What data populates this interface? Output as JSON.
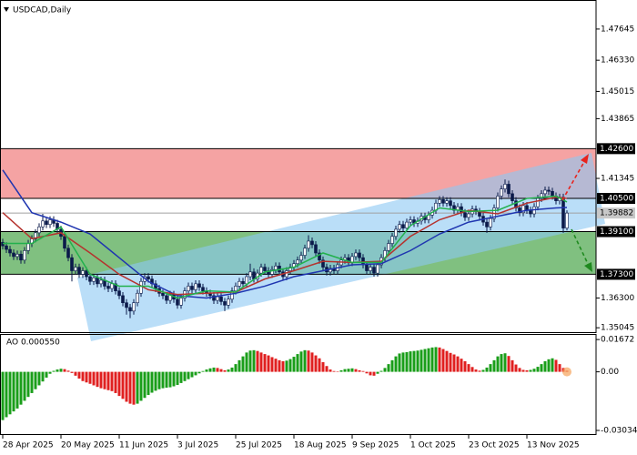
{
  "chart_data": [
    {
      "type": "candlestick",
      "title": "USDCAD,Daily",
      "categories": [
        "28 Apr 2025",
        null,
        null,
        null,
        null,
        null,
        null,
        null,
        null,
        null,
        null,
        null,
        null,
        null,
        null,
        null,
        "20 May 2025",
        null,
        null,
        null,
        null,
        null,
        null,
        null,
        null,
        null,
        null,
        null,
        null,
        null,
        null,
        null,
        "11 Jun 2025",
        null,
        null,
        null,
        null,
        null,
        null,
        null,
        null,
        null,
        null,
        null,
        null,
        null,
        null,
        null,
        "3 Jul 2025",
        null,
        null,
        null,
        null,
        null,
        null,
        null,
        null,
        null,
        null,
        null,
        null,
        null,
        null,
        null,
        "25 Jul 2025",
        null,
        null,
        null,
        null,
        null,
        null,
        null,
        null,
        null,
        null,
        null,
        null,
        null,
        null,
        null,
        "18 Aug 2025",
        null,
        null,
        null,
        null,
        null,
        null,
        null,
        null,
        null,
        null,
        null,
        null,
        null,
        null,
        null,
        "9 Sep 2025",
        null,
        null,
        null,
        null,
        null,
        null,
        null,
        null,
        null,
        null,
        null,
        null,
        null,
        null,
        null,
        "1 Oct 2025",
        null,
        null,
        null,
        null,
        null,
        null,
        null,
        null,
        null,
        null,
        null,
        null,
        null,
        null,
        null,
        "23 Oct 2025",
        null,
        null,
        null,
        null,
        null,
        null,
        null,
        null,
        null,
        null,
        null,
        null,
        null,
        null,
        null,
        "13 Nov 2025",
        null,
        null,
        null,
        null,
        null,
        null,
        null,
        null,
        null,
        null,
        null
      ],
      "open": [
        1.3865,
        1.385,
        1.3835,
        1.382,
        1.3805,
        1.3815,
        1.379,
        1.383,
        1.386,
        1.388,
        1.3905,
        1.393,
        1.3955,
        1.394,
        1.396,
        1.3945,
        1.392,
        1.389,
        1.384,
        1.38,
        1.3745,
        1.376,
        1.373,
        1.3745,
        1.372,
        1.37,
        1.3715,
        1.369,
        1.3705,
        1.368,
        1.367,
        1.369,
        1.366,
        1.364,
        1.361,
        1.359,
        1.3575,
        1.361,
        1.365,
        1.37,
        1.372,
        1.371,
        1.369,
        1.367,
        1.365,
        1.364,
        1.362,
        1.3645,
        1.3625,
        1.36,
        1.363,
        1.366,
        1.368,
        1.3665,
        1.369,
        1.3675,
        1.366,
        1.365,
        1.364,
        1.362,
        1.3635,
        1.3615,
        1.36,
        1.3625,
        1.366,
        1.368,
        1.37,
        1.369,
        1.372,
        1.374,
        1.371,
        1.3735,
        1.376,
        1.3745,
        1.373,
        1.375,
        1.3765,
        1.374,
        1.372,
        1.3745,
        1.376,
        1.3775,
        1.379,
        1.381,
        1.384,
        1.387,
        1.3855,
        1.382,
        1.379,
        1.376,
        1.374,
        1.3755,
        1.3745,
        1.377,
        1.379,
        1.38,
        1.378,
        1.3805,
        1.382,
        1.38,
        1.377,
        1.3745,
        1.376,
        1.3735,
        1.377,
        1.38,
        1.383,
        1.386,
        1.389,
        1.392,
        1.394,
        1.3925,
        1.395,
        1.396,
        1.3945,
        1.3955,
        1.3975,
        1.396,
        1.398,
        1.4,
        1.403,
        1.4045,
        1.403,
        1.404,
        1.402,
        1.4,
        1.4015,
        1.399,
        1.397,
        1.3985,
        1.4005,
        1.3995,
        1.3975,
        1.395,
        1.393,
        1.3965,
        1.401,
        1.406,
        1.409,
        1.411,
        1.407,
        1.404,
        1.401,
        1.399,
        1.402,
        1.4,
        1.3985,
        1.4015,
        1.405,
        1.407,
        1.4085,
        1.408,
        1.406,
        1.404,
        1.4055,
        1.3925
      ],
      "high": [
        1.388,
        1.3865,
        1.385,
        1.3835,
        1.383,
        1.383,
        1.3845,
        1.3875,
        1.3895,
        1.392,
        1.3945,
        1.3985,
        1.397,
        1.3975,
        1.3975,
        1.396,
        1.3935,
        1.3905,
        1.3855,
        1.3815,
        1.3775,
        1.3775,
        1.376,
        1.376,
        1.3735,
        1.373,
        1.373,
        1.372,
        1.372,
        1.3695,
        1.3705,
        1.3705,
        1.3675,
        1.3655,
        1.3625,
        1.3605,
        1.3625,
        1.3665,
        1.3715,
        1.3735,
        1.3735,
        1.3725,
        1.3705,
        1.3685,
        1.3665,
        1.3655,
        1.366,
        1.366,
        1.364,
        1.3645,
        1.3675,
        1.3695,
        1.3695,
        1.3705,
        1.3705,
        1.369,
        1.3675,
        1.3665,
        1.3655,
        1.365,
        1.365,
        1.363,
        1.364,
        1.3675,
        1.3695,
        1.3715,
        1.3715,
        1.3735,
        1.3775,
        1.3755,
        1.375,
        1.3775,
        1.3775,
        1.376,
        1.3765,
        1.378,
        1.378,
        1.3755,
        1.376,
        1.3775,
        1.379,
        1.3805,
        1.3825,
        1.3855,
        1.3895,
        1.3885,
        1.387,
        1.3835,
        1.3805,
        1.3775,
        1.377,
        1.377,
        1.3785,
        1.3805,
        1.3815,
        1.3815,
        1.382,
        1.3835,
        1.3835,
        1.3815,
        1.3785,
        1.3775,
        1.3775,
        1.3785,
        1.3815,
        1.3845,
        1.3875,
        1.3905,
        1.3935,
        1.3955,
        1.3955,
        1.3965,
        1.3975,
        1.3975,
        1.397,
        1.399,
        1.399,
        1.3995,
        1.4015,
        1.4045,
        1.406,
        1.406,
        1.4055,
        1.4055,
        1.4035,
        1.403,
        1.403,
        1.4005,
        1.4,
        1.402,
        1.402,
        1.401,
        1.399,
        1.3965,
        1.398,
        1.4025,
        1.4075,
        1.4105,
        1.413,
        1.4125,
        1.4085,
        1.4055,
        1.4025,
        1.4035,
        1.4035,
        1.4015,
        1.403,
        1.4065,
        1.4085,
        1.41,
        1.41,
        1.4095,
        1.4075,
        1.407,
        1.407,
        1.4
      ],
      "low": [
        1.3835,
        1.382,
        1.3805,
        1.379,
        1.379,
        1.3775,
        1.3775,
        1.3815,
        1.3845,
        1.3865,
        1.389,
        1.3915,
        1.3925,
        1.3925,
        1.393,
        1.3905,
        1.3875,
        1.3825,
        1.3785,
        1.37,
        1.373,
        1.3715,
        1.3715,
        1.3705,
        1.3685,
        1.3685,
        1.3675,
        1.3675,
        1.3665,
        1.3655,
        1.3655,
        1.3645,
        1.3625,
        1.3595,
        1.356,
        1.3545,
        1.356,
        1.3595,
        1.3635,
        1.3685,
        1.3695,
        1.3675,
        1.3655,
        1.3635,
        1.3625,
        1.3605,
        1.3605,
        1.361,
        1.3585,
        1.3585,
        1.3615,
        1.3645,
        1.365,
        1.365,
        1.366,
        1.3645,
        1.3635,
        1.3625,
        1.3605,
        1.3605,
        1.36,
        1.3575,
        1.3585,
        1.361,
        1.3645,
        1.3665,
        1.3675,
        1.3675,
        1.3705,
        1.3695,
        1.3695,
        1.372,
        1.373,
        1.3715,
        1.3715,
        1.3735,
        1.3725,
        1.3705,
        1.3705,
        1.373,
        1.3745,
        1.376,
        1.3775,
        1.3795,
        1.3825,
        1.384,
        1.3805,
        1.3775,
        1.3745,
        1.3725,
        1.3725,
        1.373,
        1.373,
        1.3755,
        1.3775,
        1.3765,
        1.3765,
        1.379,
        1.3785,
        1.3755,
        1.373,
        1.373,
        1.372,
        1.372,
        1.3755,
        1.3785,
        1.3815,
        1.3845,
        1.3875,
        1.3905,
        1.391,
        1.391,
        1.3935,
        1.393,
        1.393,
        1.394,
        1.3945,
        1.3945,
        1.3965,
        1.3985,
        1.4015,
        1.4015,
        1.4015,
        1.4005,
        1.3985,
        1.3985,
        1.3975,
        1.3955,
        1.3955,
        1.397,
        1.398,
        1.396,
        1.3935,
        1.3905,
        1.3915,
        1.395,
        1.3995,
        1.4045,
        1.4075,
        1.4055,
        1.4025,
        1.3995,
        1.3975,
        1.3975,
        1.3985,
        1.397,
        1.397,
        1.4,
        1.4035,
        1.4055,
        1.4065,
        1.4045,
        1.4025,
        1.4025,
        1.3905,
        1.3915
      ],
      "close": [
        1.385,
        1.3835,
        1.382,
        1.3805,
        1.3815,
        1.379,
        1.383,
        1.386,
        1.388,
        1.3905,
        1.393,
        1.3955,
        1.394,
        1.396,
        1.3945,
        1.392,
        1.389,
        1.384,
        1.38,
        1.3745,
        1.376,
        1.373,
        1.3745,
        1.372,
        1.37,
        1.3715,
        1.369,
        1.3705,
        1.368,
        1.367,
        1.369,
        1.366,
        1.364,
        1.361,
        1.359,
        1.3575,
        1.361,
        1.365,
        1.37,
        1.372,
        1.371,
        1.369,
        1.367,
        1.365,
        1.364,
        1.362,
        1.3645,
        1.3625,
        1.36,
        1.363,
        1.366,
        1.368,
        1.3665,
        1.369,
        1.3675,
        1.366,
        1.365,
        1.364,
        1.362,
        1.3635,
        1.3615,
        1.36,
        1.3625,
        1.366,
        1.368,
        1.37,
        1.369,
        1.372,
        1.374,
        1.371,
        1.3735,
        1.376,
        1.3745,
        1.373,
        1.375,
        1.3765,
        1.374,
        1.372,
        1.3745,
        1.376,
        1.3775,
        1.379,
        1.381,
        1.384,
        1.387,
        1.3855,
        1.382,
        1.379,
        1.376,
        1.374,
        1.3755,
        1.3745,
        1.377,
        1.379,
        1.38,
        1.378,
        1.3805,
        1.382,
        1.38,
        1.377,
        1.3745,
        1.376,
        1.3735,
        1.377,
        1.38,
        1.383,
        1.386,
        1.389,
        1.392,
        1.394,
        1.3925,
        1.395,
        1.396,
        1.3945,
        1.3955,
        1.3975,
        1.396,
        1.398,
        1.4,
        1.403,
        1.4045,
        1.403,
        1.404,
        1.402,
        1.4,
        1.4015,
        1.399,
        1.397,
        1.3985,
        1.4005,
        1.3995,
        1.3975,
        1.395,
        1.393,
        1.3965,
        1.401,
        1.406,
        1.409,
        1.411,
        1.407,
        1.404,
        1.401,
        1.399,
        1.402,
        1.4,
        1.3985,
        1.4015,
        1.405,
        1.407,
        1.4085,
        1.408,
        1.406,
        1.404,
        1.4055,
        1.3925,
        1.39882
      ],
      "color_up": "#ffffff",
      "color_down": "#0b1a4a",
      "outline": "#0b1a4a",
      "series": [
        {
          "color": "#1f35b0",
          "x": [
            0,
            8,
            16,
            24,
            32,
            40,
            48,
            56,
            64,
            72,
            80,
            88,
            96,
            104,
            112,
            120,
            128,
            136,
            144,
            152,
            155
          ],
          "values": [
            1.417,
            1.399,
            1.395,
            1.39,
            1.38,
            1.37,
            1.364,
            1.363,
            1.365,
            1.368,
            1.372,
            1.3745,
            1.377,
            1.3775,
            1.383,
            1.39,
            1.395,
            1.3975,
            1.4,
            1.401,
            1.4012
          ]
        },
        {
          "color": "#b5332e",
          "x": [
            0,
            8,
            16,
            24,
            32,
            40,
            48,
            56,
            64,
            72,
            80,
            88,
            96,
            104,
            112,
            120,
            128,
            136,
            144,
            152,
            155
          ],
          "values": [
            1.399,
            1.388,
            1.3905,
            1.382,
            1.373,
            1.3665,
            1.3645,
            1.365,
            1.3655,
            1.371,
            1.3745,
            1.3785,
            1.378,
            1.3785,
            1.389,
            1.396,
            1.4,
            1.3985,
            1.403,
            1.4055,
            1.405
          ]
        },
        {
          "color": "#22b14c",
          "x": [
            0,
            8,
            16,
            24,
            32,
            40,
            48,
            56,
            64,
            72,
            80,
            88,
            96,
            104,
            112,
            120,
            128,
            136,
            144,
            152,
            155
          ],
          "values": [
            1.386,
            1.386,
            1.393,
            1.373,
            1.368,
            1.368,
            1.363,
            1.366,
            1.3655,
            1.374,
            1.376,
            1.382,
            1.378,
            1.378,
            1.3935,
            1.401,
            1.3995,
            1.4,
            1.405,
            1.406,
            1.4035
          ]
        }
      ],
      "ylim": [
        1.3486,
        1.4887
      ],
      "yticks": [
        1.47645,
        {
          "value": 1.4633,
          "label": "1.46330"
        },
        1.45015,
        1.43865,
        1.41345,
        {
          "value": 1.363,
          "label": "1.36300"
        },
        1.35045
      ],
      "levels": [
        {
          "value": 1.426,
          "label": "1.42600"
        },
        {
          "value": 1.405,
          "label": "1.40500"
        },
        {
          "value": 1.391,
          "label": "1.39100"
        },
        {
          "value": 1.373,
          "label": "1.37300"
        }
      ],
      "zones": [
        {
          "from": 1.426,
          "to": 1.405,
          "color": "#f5a3a3"
        },
        {
          "from": 1.391,
          "to": 1.373,
          "color": "#80c080"
        }
      ],
      "current_price": 1.39882
    },
    {
      "type": "bar",
      "title": "AO 0.000550",
      "values": [
        -0.025,
        -0.0235,
        -0.022,
        -0.0205,
        -0.019,
        -0.017,
        -0.015,
        -0.013,
        -0.011,
        -0.009,
        -0.007,
        -0.005,
        -0.003,
        -0.001,
        0.0005,
        0.0012,
        0.0016,
        0.0014,
        0.0006,
        -0.0006,
        -0.002,
        -0.0035,
        -0.0048,
        -0.0055,
        -0.0062,
        -0.007,
        -0.0078,
        -0.0085,
        -0.009,
        -0.0095,
        -0.01,
        -0.011,
        -0.0125,
        -0.014,
        -0.0155,
        -0.0165,
        -0.017,
        -0.0165,
        -0.015,
        -0.0135,
        -0.012,
        -0.0108,
        -0.0098,
        -0.009,
        -0.0085,
        -0.0082,
        -0.008,
        -0.0075,
        -0.0068,
        -0.0058,
        -0.0048,
        -0.0038,
        -0.0028,
        -0.0018,
        -0.0008,
        0.0004,
        0.0012,
        0.0018,
        0.0022,
        0.002,
        0.0014,
        0.0008,
        0.0012,
        0.0022,
        0.004,
        0.006,
        0.008,
        0.01,
        0.011,
        0.0112,
        0.0108,
        0.01,
        0.0092,
        0.0085,
        0.0076,
        0.0068,
        0.006,
        0.0055,
        0.0058,
        0.0066,
        0.0078,
        0.0092,
        0.0105,
        0.0112,
        0.011,
        0.01,
        0.0085,
        0.007,
        0.005,
        0.003,
        0.0012,
        0.0004,
        0.0002,
        0.0008,
        0.0014,
        0.0016,
        0.0018,
        0.0014,
        0.0008,
        0.0004,
        -0.0008,
        -0.0018,
        -0.002,
        -0.001,
        0.0005,
        0.002,
        0.004,
        0.006,
        0.008,
        0.0095,
        0.01,
        0.0102,
        0.0106,
        0.0108,
        0.011,
        0.0114,
        0.0118,
        0.0122,
        0.0126,
        0.0128,
        0.0126,
        0.0118,
        0.0108,
        0.0098,
        0.009,
        0.008,
        0.0068,
        0.0055,
        0.004,
        0.0025,
        0.0012,
        0.0006,
        0.001,
        0.0022,
        0.004,
        0.006,
        0.008,
        0.0092,
        0.0096,
        0.0082,
        0.006,
        0.0038,
        0.002,
        0.001,
        0.0008,
        0.001,
        0.0016,
        0.0026,
        0.004,
        0.0055,
        0.0065,
        0.007,
        0.0062,
        0.004,
        0.002,
        0.00055
      ],
      "color_up": "#1a9e1a",
      "color_down": "#e02020",
      "ylim": [
        -0.0327,
        0.0196
      ],
      "yticks": [
        0.01672,
        {
          "value": 0,
          "label": "0.00"
        },
        -0.030342
      ]
    }
  ]
}
